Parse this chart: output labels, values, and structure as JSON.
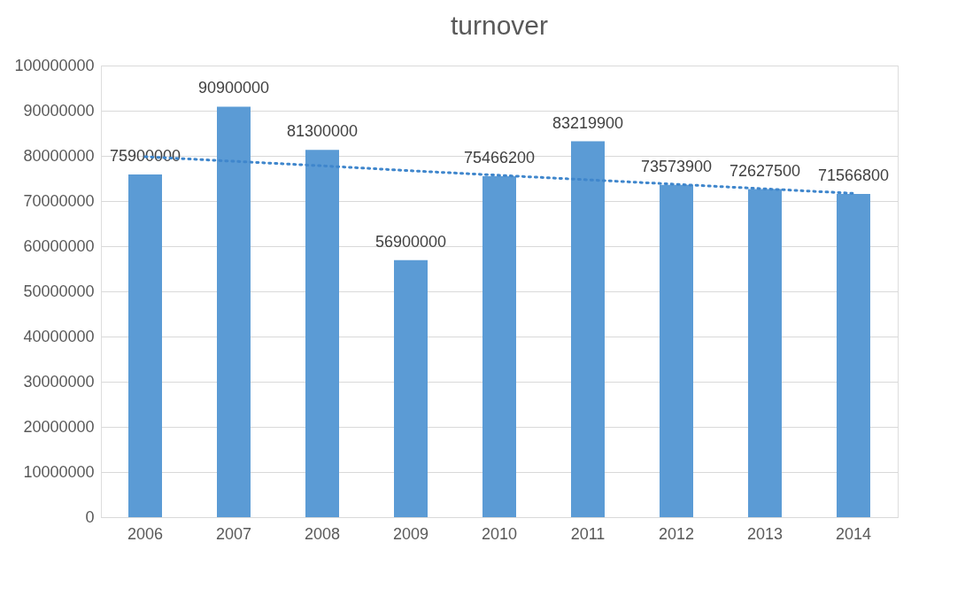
{
  "chart_data": {
    "type": "bar",
    "title": "turnover",
    "categories": [
      "2006",
      "2007",
      "2008",
      "2009",
      "2010",
      "2011",
      "2012",
      "2013",
      "2014"
    ],
    "series": [
      {
        "color": "#5b9bd5",
        "values": [
          75900000,
          90900000,
          81300000,
          56900000,
          75466200,
          83219900,
          73573900,
          72627500,
          71566800
        ],
        "value_labels": [
          "75900000",
          "90900000",
          "81300000",
          "56900000",
          "75466200",
          "83219900",
          "73573900",
          "72627500",
          "71566800"
        ]
      },
      {
        "type": "line",
        "line_style": "dotted",
        "color": "#3f86cc",
        "values": [
          79800000,
          78800000,
          77800000,
          76700000,
          75700000,
          74700000,
          73700000,
          72700000,
          71700000
        ]
      }
    ],
    "grid": "y",
    "ylim": [
      0,
      100000000
    ],
    "yticks": [
      0,
      10000000,
      20000000,
      30000000,
      40000000,
      50000000,
      60000000,
      70000000,
      80000000,
      90000000,
      100000000
    ]
  }
}
